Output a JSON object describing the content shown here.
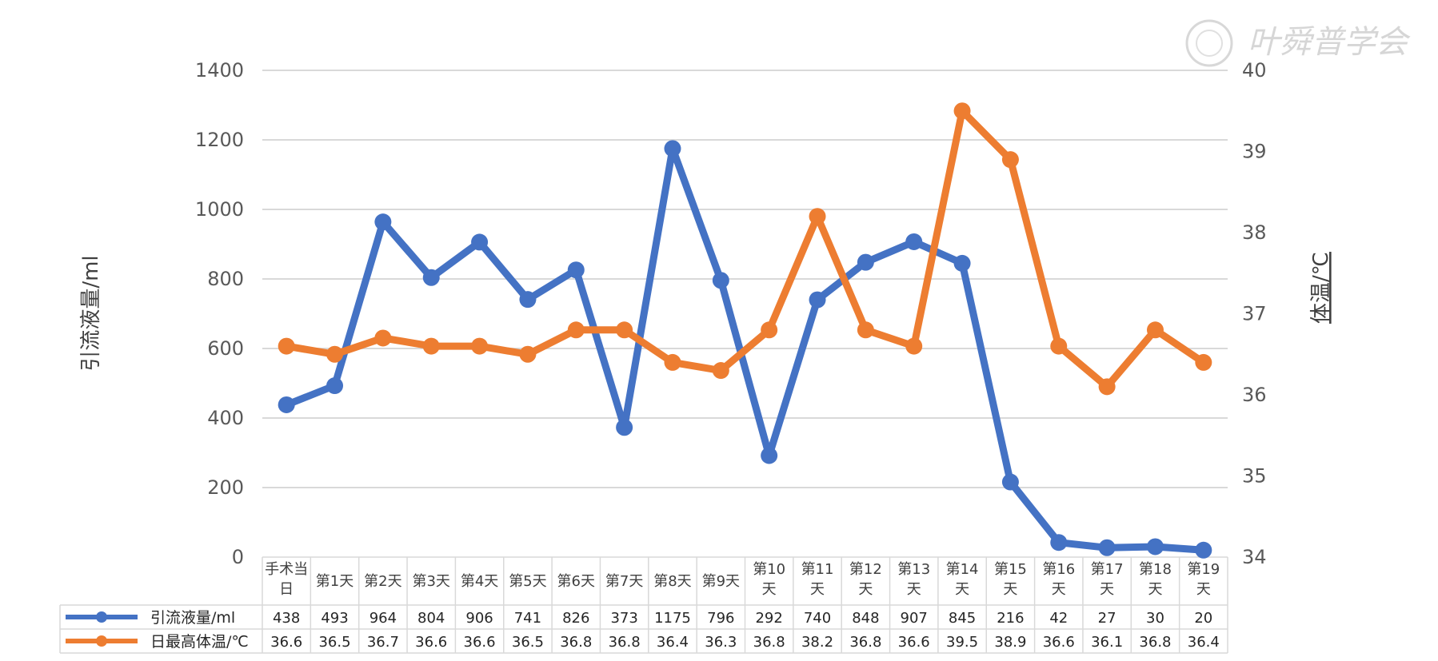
{
  "chart_data": {
    "type": "line",
    "categories": [
      "手术当日",
      "第1天",
      "第2天",
      "第3天",
      "第4天",
      "第5天",
      "第6天",
      "第7天",
      "第8天",
      "第9天",
      "第10天",
      "第11天",
      "第12天",
      "第13天",
      "第14天",
      "第15天",
      "第16天",
      "第17天",
      "第18天",
      "第19天"
    ],
    "series": [
      {
        "name": "引流液量/ml",
        "axis": "left",
        "color": "#4472C4",
        "values": [
          438,
          493,
          964,
          804,
          906,
          741,
          826,
          373,
          1175,
          796,
          292,
          740,
          848,
          907,
          845,
          216,
          42,
          27,
          30,
          20
        ]
      },
      {
        "name": "日最高体温/℃",
        "axis": "right",
        "color": "#ED7D31",
        "values": [
          36.6,
          36.5,
          36.7,
          36.6,
          36.6,
          36.5,
          36.8,
          36.8,
          36.4,
          36.3,
          36.8,
          38.2,
          36.8,
          36.6,
          39.5,
          38.9,
          36.6,
          36.1,
          36.8,
          36.4
        ]
      }
    ],
    "ylabel_left": "引流液量/ml",
    "ylabel_right": "体温/℃",
    "ylim_left": [
      0,
      1400
    ],
    "yticks_left": [
      0,
      200,
      400,
      600,
      800,
      1000,
      1200,
      1400
    ],
    "ylim_right": [
      34,
      40
    ],
    "yticks_right": [
      34,
      35,
      36,
      37,
      38,
      39,
      40
    ],
    "grid": true,
    "legend": "data-table"
  },
  "watermark": "叶舜普学会",
  "watermark_icon": "seal-icon"
}
